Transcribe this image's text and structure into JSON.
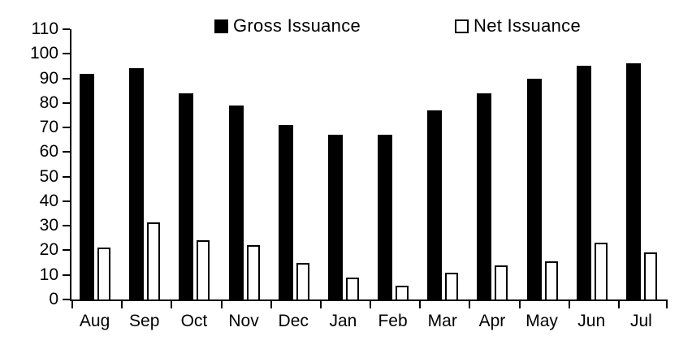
{
  "chart_data": {
    "type": "bar",
    "title": "",
    "xlabel": "",
    "ylabel": "",
    "categories": [
      "Aug",
      "Sep",
      "Oct",
      "Nov",
      "Dec",
      "Jan",
      "Feb",
      "Mar",
      "Apr",
      "May",
      "Jun",
      "Jul"
    ],
    "series": [
      {
        "name": "Gross Issuance",
        "color": "#000000",
        "values": [
          92,
          94,
          84,
          79,
          71,
          67,
          67,
          77,
          84,
          90,
          95,
          96
        ]
      },
      {
        "name": "Net Issuance",
        "color": "#ffffff",
        "border_color": "#000000",
        "values": [
          21,
          31.5,
          24,
          22,
          15,
          9,
          5.5,
          11,
          14,
          15.5,
          23,
          19
        ]
      }
    ],
    "ylim": [
      0,
      110
    ],
    "yticks": [
      0,
      10,
      20,
      30,
      40,
      50,
      60,
      70,
      80,
      90,
      100,
      110
    ],
    "grid": false,
    "legend_position": "top",
    "axis_color": "#000000",
    "background": "#ffffff"
  }
}
